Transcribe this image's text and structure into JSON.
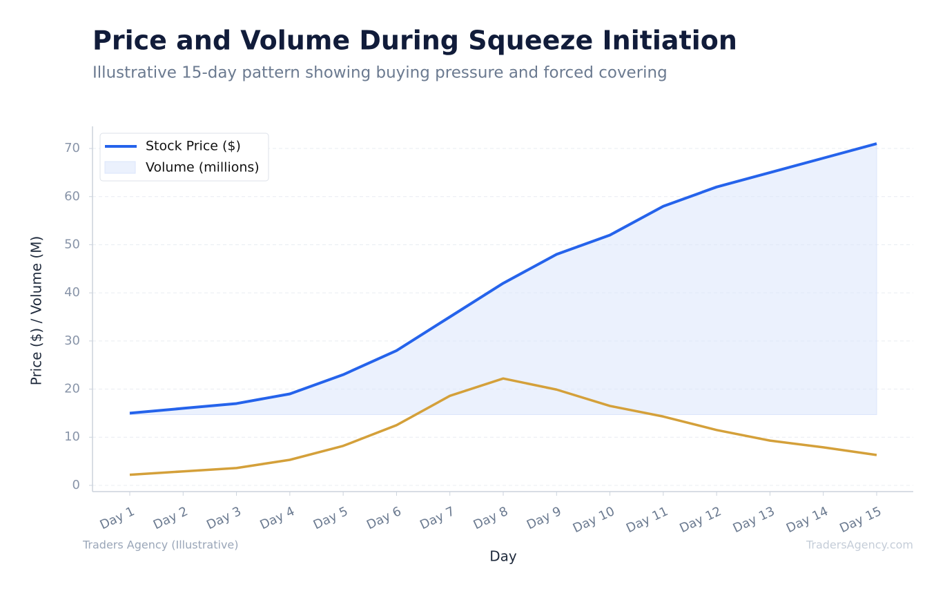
{
  "chart_data": {
    "type": "line",
    "title": "Price and Volume During Squeeze Initiation",
    "subtitle": "Illustrative 15-day pattern showing buying pressure and forced covering",
    "x_label": "Day",
    "y_label": "Price ($) / Volume (M)",
    "categories": [
      "Day 1",
      "Day 2",
      "Day 3",
      "Day 4",
      "Day 5",
      "Day 6",
      "Day 7",
      "Day 8",
      "Day 9",
      "Day 10",
      "Day 11",
      "Day 12",
      "Day 13",
      "Day 14",
      "Day 15"
    ],
    "series": [
      {
        "name": "Stock Price ($)",
        "color": "#2563eb",
        "values": [
          15,
          16,
          17,
          19,
          23,
          28,
          35,
          42,
          48,
          52,
          58,
          62,
          65,
          68,
          71
        ]
      },
      {
        "color": "#d4a03a",
        "values": [
          2.2,
          2.9,
          3.6,
          5.3,
          8.2,
          12.5,
          18.6,
          22.2,
          19.9,
          16.5,
          14.3,
          11.5,
          9.3,
          7.9,
          6.3
        ]
      }
    ],
    "fill": {
      "label": "Volume (millions)",
      "color": "#dbe5fb",
      "baseline": 14.7
    },
    "ylim": [
      -1.3,
      74.6
    ],
    "yticks": [
      0,
      10,
      20,
      30,
      40,
      50,
      60,
      70
    ],
    "grid": true,
    "legend": "upper left",
    "footer_left": "Traders Agency (Illustrative)",
    "footer_right": "TradersAgency.com"
  }
}
